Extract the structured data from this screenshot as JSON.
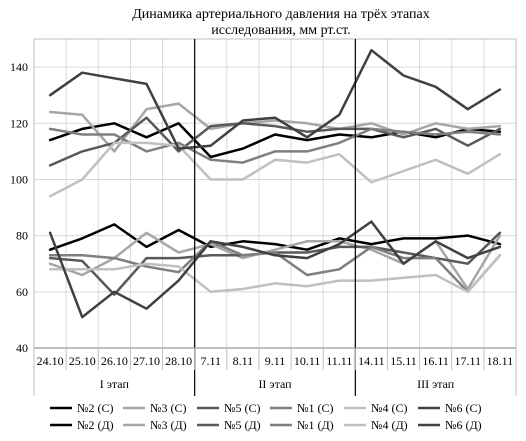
{
  "chart_data": {
    "type": "line",
    "title_line1": "Динамика артериального давления на трёх этапах",
    "title_line2": "исследования, мм рт.ст.",
    "categories": [
      "24.10",
      "25.10",
      "26.10",
      "27.10",
      "28.10",
      "7.11",
      "8.11",
      "9.11",
      "10.11",
      "11.11",
      "14.11",
      "15.11",
      "16.11",
      "17.11",
      "18.11"
    ],
    "groups": [
      {
        "label": "I этап",
        "start": 0,
        "end": 4
      },
      {
        "label": "II этап",
        "start": 5,
        "end": 9
      },
      {
        "label": "III этап",
        "start": 10,
        "end": 14
      }
    ],
    "ylim": [
      40,
      150
    ],
    "yticks": [
      40,
      60,
      80,
      100,
      120,
      140
    ],
    "grid": true,
    "legend_position": "bottom",
    "series": [
      {
        "name": "№2 (С)",
        "color": "#000000",
        "width": 2.5,
        "values": [
          114,
          118,
          120,
          115,
          120,
          108,
          111,
          116,
          114,
          116,
          115,
          117,
          115,
          118,
          117
        ]
      },
      {
        "name": "№3 (С)",
        "color": "#a6a6a6",
        "width": 2.5,
        "values": [
          124,
          123,
          110,
          125,
          127,
          118,
          120,
          121,
          120,
          118,
          120,
          116,
          120,
          118,
          119
        ]
      },
      {
        "name": "№5 (С)",
        "color": "#595959",
        "width": 2.5,
        "values": [
          105,
          110,
          113,
          122,
          110,
          119,
          120,
          119,
          117,
          118,
          118,
          115,
          118,
          112,
          118
        ]
      },
      {
        "name": "№1 (С)",
        "color": "#7f7f7f",
        "width": 2.5,
        "values": [
          118,
          116,
          116,
          110,
          113,
          107,
          106,
          110,
          110,
          113,
          118,
          117,
          116,
          117,
          116
        ]
      },
      {
        "name": "№4 (С)",
        "color": "#c0c0c0",
        "width": 2.5,
        "values": [
          94,
          100,
          113,
          113,
          112,
          100,
          100,
          107,
          106,
          109,
          99,
          103,
          107,
          102,
          109
        ]
      },
      {
        "name": "№6 (С)",
        "color": "#404040",
        "width": 2.5,
        "values": [
          130,
          138,
          136,
          134,
          111,
          112,
          121,
          122,
          115,
          123,
          146,
          137,
          133,
          125,
          132
        ]
      },
      {
        "name": "№2 (Д)",
        "color": "#000000",
        "width": 2.5,
        "values": [
          75,
          79,
          84,
          76,
          82,
          76,
          78,
          77,
          75,
          79,
          77,
          79,
          79,
          80,
          77
        ]
      },
      {
        "name": "№3 (Д)",
        "color": "#a6a6a6",
        "width": 2.5,
        "values": [
          70,
          66,
          72,
          81,
          74,
          77,
          72,
          75,
          78,
          78,
          75,
          70,
          78,
          61,
          80
        ]
      },
      {
        "name": "№5 (Д)",
        "color": "#595959",
        "width": 2.5,
        "values": [
          72,
          71,
          59,
          72,
          72,
          73,
          73,
          74,
          74,
          76,
          76,
          74,
          72,
          70,
          81
        ]
      },
      {
        "name": "№1 (Д)",
        "color": "#7f7f7f",
        "width": 2.5,
        "values": [
          73,
          73,
          72,
          69,
          67,
          78,
          73,
          74,
          66,
          68,
          76,
          72,
          72,
          60,
          73
        ]
      },
      {
        "name": "№4 (Д)",
        "color": "#c0c0c0",
        "width": 2.5,
        "values": [
          68,
          68,
          68,
          70,
          69,
          60,
          61,
          63,
          62,
          64,
          64,
          65,
          66,
          60,
          73
        ]
      },
      {
        "name": "№6 (Д)",
        "color": "#404040",
        "width": 2.5,
        "values": [
          81,
          51,
          60,
          54,
          64,
          78,
          76,
          73,
          72,
          77,
          85,
          70,
          78,
          72,
          76
        ]
      }
    ]
  }
}
